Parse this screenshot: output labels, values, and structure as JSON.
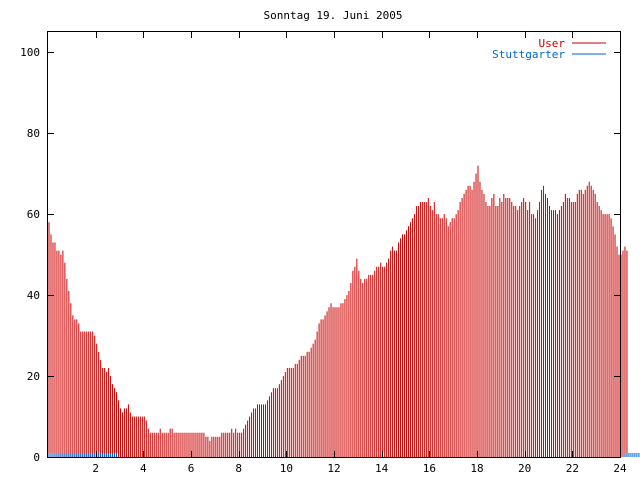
{
  "chart_data": {
    "type": "bar",
    "title": "Sonntag 19. Juni 2005",
    "xlabel": "",
    "ylabel": "",
    "xlim": [
      0,
      24
    ],
    "ylim": [
      0,
      105
    ],
    "x_ticks": [
      2,
      4,
      6,
      8,
      10,
      12,
      14,
      16,
      18,
      20,
      22,
      24
    ],
    "y_ticks": [
      0,
      20,
      40,
      60,
      80,
      100
    ],
    "grid": false,
    "legend_position": "top-right",
    "bin_width_hours": 0.0833333,
    "series": [
      {
        "name": "User",
        "color": "#cc0000",
        "values": [
          58,
          55,
          53,
          53,
          51,
          51,
          50,
          51,
          48,
          44,
          41,
          38,
          35,
          34,
          34,
          33,
          31,
          31,
          31,
          31,
          31,
          31,
          31,
          30,
          28,
          26,
          24,
          22,
          22,
          21,
          22,
          20,
          18,
          17,
          16,
          14,
          12,
          11,
          12,
          12,
          13,
          11,
          10,
          10,
          10,
          10,
          10,
          10,
          10,
          9,
          7,
          6,
          6,
          6,
          6,
          6,
          7,
          6,
          6,
          6,
          6,
          7,
          7,
          6,
          6,
          6,
          6,
          6,
          6,
          6,
          6,
          6,
          6,
          6,
          6,
          6,
          6,
          6,
          6,
          5,
          5,
          4,
          5,
          5,
          5,
          5,
          5,
          6,
          6,
          6,
          6,
          6,
          7,
          6,
          7,
          6,
          6,
          6,
          7,
          8,
          9,
          10,
          11,
          12,
          12,
          13,
          13,
          13,
          13,
          13,
          14,
          15,
          16,
          17,
          17,
          17,
          18,
          19,
          20,
          21,
          22,
          22,
          22,
          22,
          23,
          23,
          24,
          25,
          25,
          25,
          26,
          26,
          27,
          28,
          29,
          31,
          33,
          34,
          34,
          35,
          36,
          37,
          38,
          37,
          37,
          37,
          37,
          38,
          38,
          39,
          40,
          41,
          43,
          46,
          47,
          49,
          46,
          44,
          43,
          44,
          44,
          45,
          45,
          45,
          46,
          47,
          47,
          48,
          47,
          47,
          48,
          49,
          51,
          52,
          51,
          51,
          53,
          54,
          55,
          55,
          56,
          57,
          58,
          59,
          60,
          62,
          62,
          63,
          63,
          63,
          63,
          64,
          62,
          61,
          63,
          60,
          60,
          59,
          59,
          60,
          59,
          57,
          58,
          59,
          59,
          60,
          61,
          63,
          64,
          65,
          66,
          67,
          67,
          66,
          68,
          70,
          72,
          68,
          66,
          65,
          63,
          62,
          62,
          64,
          65,
          62,
          62,
          64,
          63,
          65,
          64,
          64,
          64,
          63,
          62,
          62,
          61,
          62,
          63,
          64,
          63,
          61,
          63,
          60,
          60,
          59,
          61,
          63,
          66,
          67,
          65,
          64,
          62,
          61,
          61,
          61,
          60,
          61,
          62,
          63,
          65,
          64,
          64,
          63,
          63,
          63,
          65,
          66,
          66,
          65,
          66,
          67,
          68,
          67,
          66,
          65,
          63,
          62,
          61,
          60,
          60,
          60,
          60,
          59,
          57,
          55,
          52,
          50,
          50,
          51,
          52,
          51
        ]
      },
      {
        "name": "Stuttgarter",
        "color": "#0066cc",
        "values": [
          1,
          1,
          1,
          1,
          1,
          1,
          1,
          1,
          1,
          1,
          1,
          1,
          1,
          1,
          1,
          1,
          1,
          1,
          1,
          1,
          1,
          1,
          1,
          1,
          1,
          1,
          1,
          1,
          1,
          1,
          1,
          1,
          1,
          1,
          1,
          0,
          0,
          0,
          0,
          0,
          0,
          0,
          0,
          0,
          0,
          0,
          0,
          0,
          0,
          0,
          0,
          0,
          0,
          0,
          0,
          0,
          0,
          0,
          0,
          0,
          0,
          0,
          0,
          0,
          0,
          0,
          0,
          0,
          0,
          0,
          0,
          0,
          0,
          0,
          0,
          0,
          0,
          0,
          0,
          0,
          0,
          0,
          0,
          0,
          0,
          0,
          0,
          0,
          0,
          0,
          0,
          0,
          0,
          0,
          0,
          0,
          0,
          0,
          0,
          0,
          0,
          0,
          0,
          0,
          0,
          0,
          0,
          0,
          0,
          0,
          0,
          0,
          0,
          0,
          0,
          0,
          0,
          0,
          0,
          0,
          0,
          0,
          0,
          0,
          0,
          0,
          0,
          0,
          0,
          0,
          0,
          0,
          0,
          0,
          0,
          0,
          0,
          0,
          0,
          0,
          0,
          0,
          0,
          0,
          0,
          0,
          0,
          0,
          0,
          0,
          0,
          0,
          0,
          0,
          0,
          0,
          0,
          0,
          0,
          0,
          0,
          0,
          0,
          0,
          0,
          0,
          0,
          0,
          0,
          0,
          0,
          0,
          0,
          0,
          0,
          0,
          0,
          0,
          0,
          0,
          0,
          0,
          0,
          0,
          0,
          0,
          0,
          0,
          0,
          0,
          0,
          0,
          0,
          0,
          0,
          0,
          0,
          0,
          0,
          0,
          0,
          0,
          0,
          0,
          0,
          0,
          0,
          0,
          0,
          0,
          0,
          0,
          0,
          0,
          0,
          0,
          0,
          0,
          0,
          0,
          0,
          0,
          0,
          0,
          0,
          0,
          0,
          0,
          0,
          0,
          0,
          0,
          0,
          0,
          0,
          0,
          0,
          0,
          0,
          0,
          0,
          0,
          0,
          0,
          0,
          0,
          0,
          0,
          0,
          0,
          0,
          0,
          0,
          0,
          0,
          0,
          0,
          0,
          0,
          0,
          0,
          0,
          0,
          0,
          0,
          0,
          0,
          0,
          0,
          0,
          0,
          0,
          0,
          0,
          0,
          0,
          0,
          0,
          0,
          0,
          0,
          0,
          0,
          0,
          0,
          0,
          0,
          0,
          0,
          0,
          1,
          1,
          1,
          1,
          1,
          1,
          1,
          1,
          1,
          1,
          1,
          1
        ]
      }
    ]
  }
}
